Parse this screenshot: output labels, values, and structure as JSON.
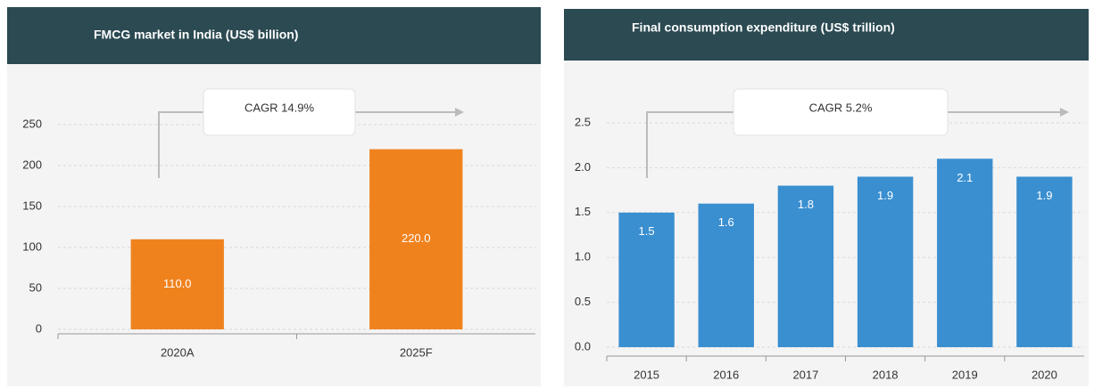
{
  "chart_data": [
    {
      "type": "bar",
      "title": "FMCG market in India (US$ billion)",
      "categories": [
        "2020A",
        "2025F"
      ],
      "values": [
        110,
        220
      ],
      "value_labels": [
        "110.0",
        "220.0"
      ],
      "color": "#f0821e",
      "ylim": [
        0,
        250
      ],
      "yticks": [
        0,
        50,
        100,
        150,
        200,
        250
      ],
      "grid": true,
      "annotation": "CAGR 14.9%"
    },
    {
      "type": "bar",
      "title": "Final consumption expenditure (US$ trillion)",
      "categories": [
        "2015",
        "2016",
        "2017",
        "2018",
        "2019",
        "2020"
      ],
      "values": [
        1.5,
        1.6,
        1.8,
        1.9,
        2.1,
        1.9
      ],
      "color": "#3a8fd0",
      "ylim": [
        0,
        2.5
      ],
      "yticks": [
        {
          "value": 0,
          "label": "0.0"
        },
        0.5,
        {
          "value": 1,
          "label": "1.0"
        },
        1.5,
        {
          "value": 2,
          "label": "2.0"
        },
        2.5
      ],
      "grid": true,
      "annotation": "CAGR 5.2%"
    }
  ]
}
